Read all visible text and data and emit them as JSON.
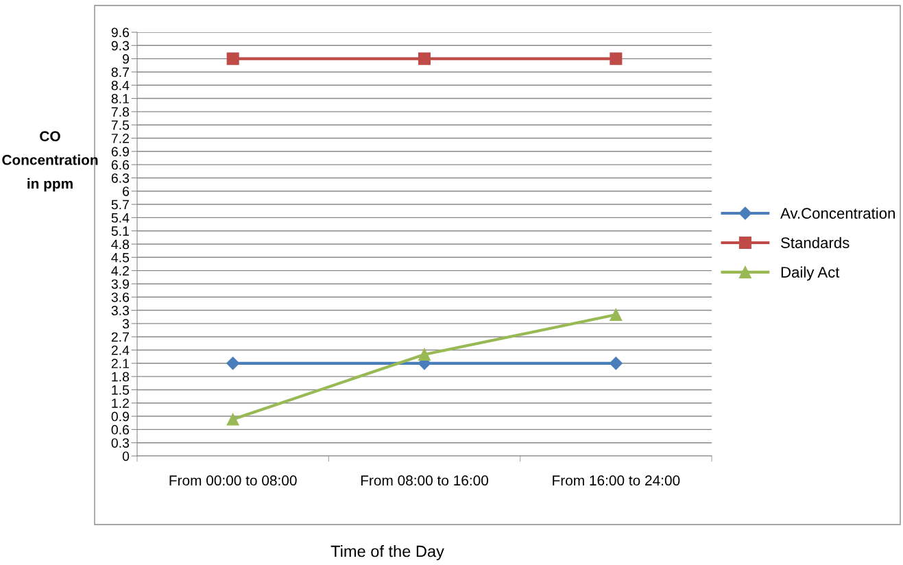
{
  "chart_data": {
    "type": "line",
    "ylabel": "CO Concentration in ppm",
    "xlabel": "Time of the Day",
    "categories": [
      "From 00:00 to 08:00",
      "From 08:00 to 16:00",
      "From 16:00 to 24:00"
    ],
    "series": [
      {
        "name": "Av.Concentration",
        "color": "#4a7ebb",
        "marker": "diamond",
        "values": [
          2.1,
          2.1,
          2.1
        ]
      },
      {
        "name": "Standards",
        "color": "#be4b48",
        "marker": "square",
        "values": [
          9,
          9,
          9
        ]
      },
      {
        "name": "Daily Act",
        "color": "#98b954",
        "marker": "triangle",
        "values": [
          0.83,
          2.3,
          3.2
        ]
      }
    ],
    "ylim": [
      0,
      9.6
    ],
    "yticks": [
      0,
      0.3,
      0.6,
      0.9,
      1.2,
      1.5,
      1.8,
      2.1,
      2.4,
      2.7,
      3,
      3.3,
      3.6,
      3.9,
      4.2,
      4.5,
      4.8,
      5.1,
      5.4,
      5.7,
      6,
      6.3,
      6.6,
      6.9,
      7.2,
      7.5,
      7.8,
      8.1,
      8.4,
      8.7,
      9,
      9.3,
      9.6
    ],
    "grid": "y",
    "legend": "right",
    "line_style": "solid"
  }
}
